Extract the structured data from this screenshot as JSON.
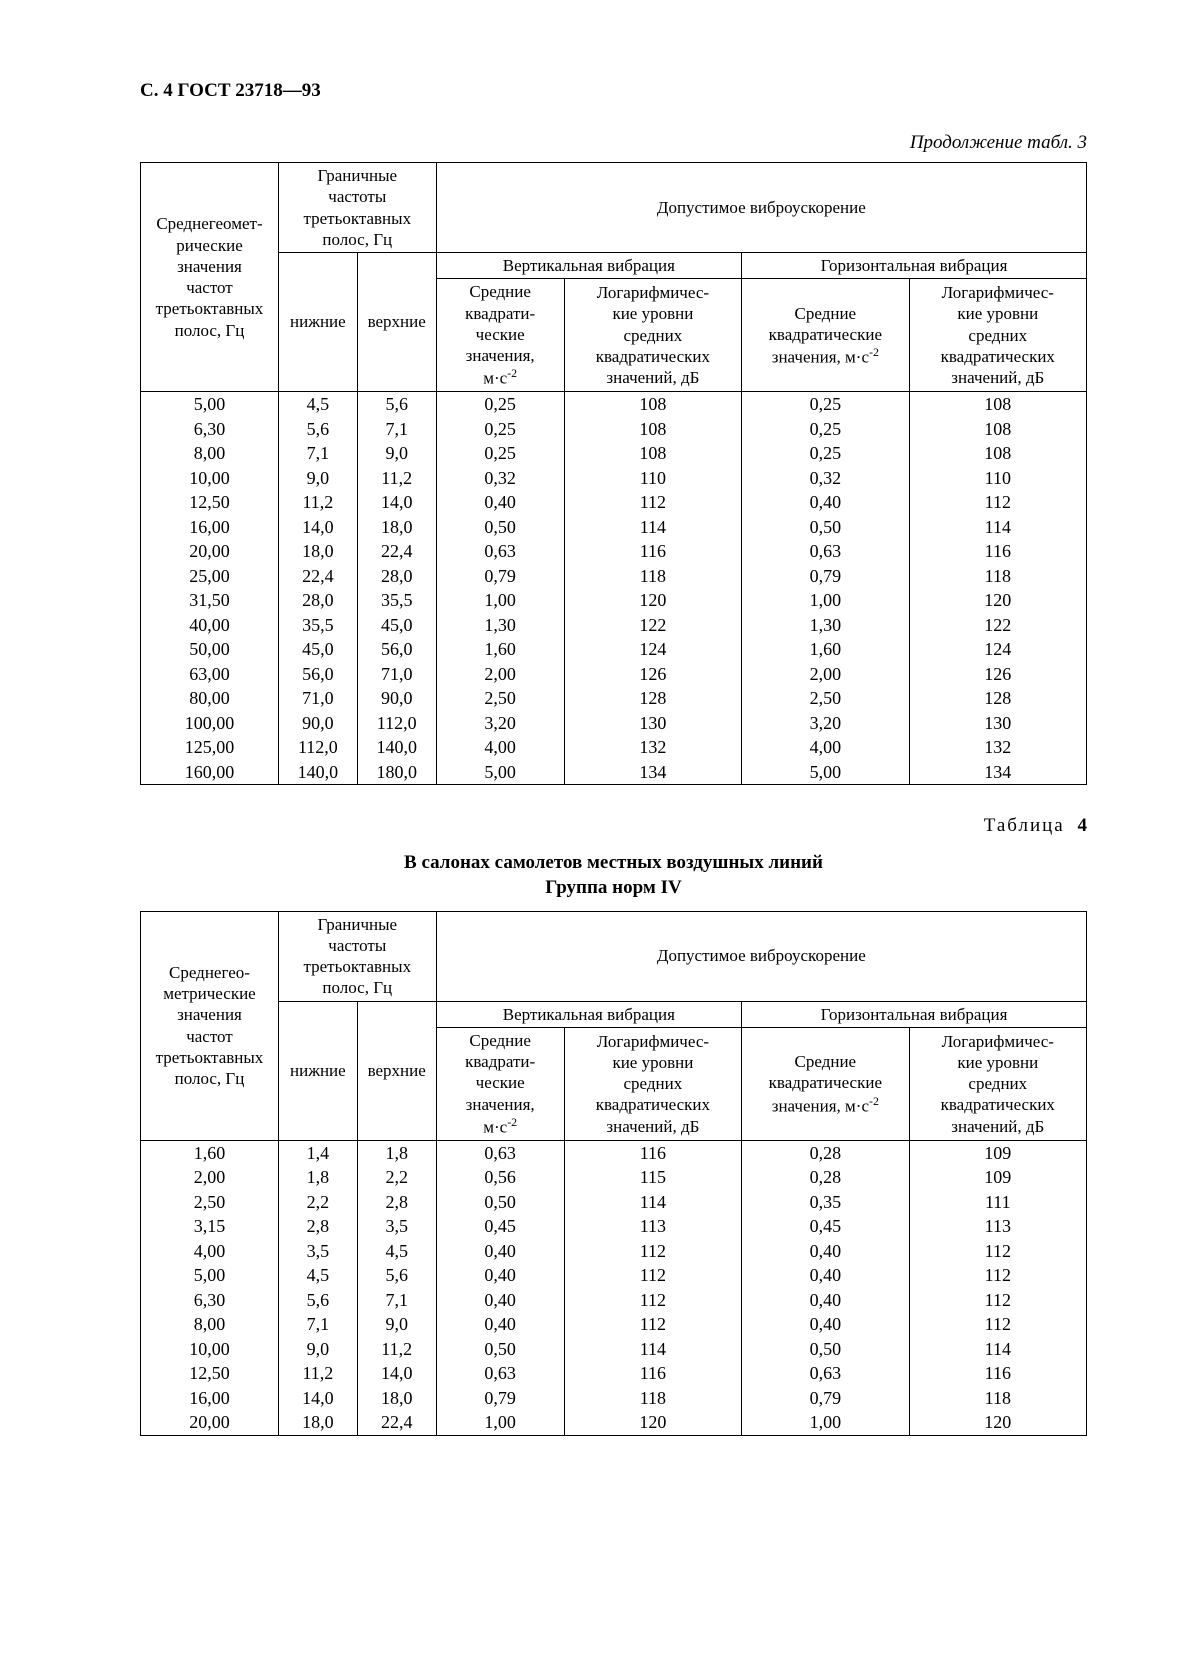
{
  "page_header": "С. 4 ГОСТ 23718—93",
  "continuation_text": "Продолжение табл. 3",
  "table_caption_label": "Таблица",
  "table4_number": "4",
  "table4_title_line1": "В салонах самолетов местных воздушных линий",
  "table4_title_line2": "Группа норм IV",
  "headers": {
    "col_freq": "Среднегеомет-\nрические значения частот третьоктавных полос, Гц",
    "col_freq_b": "Среднегео-\nметрические значения частот третьоктавных полос, Гц",
    "limit_freq": "Граничные частоты третьоктавных полос, Гц",
    "lower": "нижние",
    "upper": "верхние",
    "allowable": "Допустимое виброускорение",
    "vertical": "Вертикальная вибрация",
    "horizontal": "Горизонтальная вибрация",
    "rms": "Средние квадрати-\nческие значения, м·с⁻²",
    "rms_h": "Средние квадратические значения, м·с⁻²",
    "log": "Логарифмичес-\nкие уровни средних квадратических значений, дБ"
  },
  "table3_rows": [
    [
      "5,00",
      "4,5",
      "5,6",
      "0,25",
      "108",
      "0,25",
      "108"
    ],
    [
      "6,30",
      "5,6",
      "7,1",
      "0,25",
      "108",
      "0,25",
      "108"
    ],
    [
      "8,00",
      "7,1",
      "9,0",
      "0,25",
      "108",
      "0,25",
      "108"
    ],
    [
      "10,00",
      "9,0",
      "11,2",
      "0,32",
      "110",
      "0,32",
      "110"
    ],
    [
      "12,50",
      "11,2",
      "14,0",
      "0,40",
      "112",
      "0,40",
      "112"
    ],
    [
      "16,00",
      "14,0",
      "18,0",
      "0,50",
      "114",
      "0,50",
      "114"
    ],
    [
      "20,00",
      "18,0",
      "22,4",
      "0,63",
      "116",
      "0,63",
      "116"
    ],
    [
      "25,00",
      "22,4",
      "28,0",
      "0,79",
      "118",
      "0,79",
      "118"
    ],
    [
      "31,50",
      "28,0",
      "35,5",
      "1,00",
      "120",
      "1,00",
      "120"
    ],
    [
      "40,00",
      "35,5",
      "45,0",
      "1,30",
      "122",
      "1,30",
      "122"
    ],
    [
      "50,00",
      "45,0",
      "56,0",
      "1,60",
      "124",
      "1,60",
      "124"
    ],
    [
      "63,00",
      "56,0",
      "71,0",
      "2,00",
      "126",
      "2,00",
      "126"
    ],
    [
      "80,00",
      "71,0",
      "90,0",
      "2,50",
      "128",
      "2,50",
      "128"
    ],
    [
      "100,00",
      "90,0",
      "112,0",
      "3,20",
      "130",
      "3,20",
      "130"
    ],
    [
      "125,00",
      "112,0",
      "140,0",
      "4,00",
      "132",
      "4,00",
      "132"
    ],
    [
      "160,00",
      "140,0",
      "180,0",
      "5,00",
      "134",
      "5,00",
      "134"
    ]
  ],
  "table4_rows": [
    [
      "1,60",
      "1,4",
      "1,8",
      "0,63",
      "116",
      "0,28",
      "109"
    ],
    [
      "2,00",
      "1,8",
      "2,2",
      "0,56",
      "115",
      "0,28",
      "109"
    ],
    [
      "2,50",
      "2,2",
      "2,8",
      "0,50",
      "114",
      "0,35",
      "111"
    ],
    [
      "3,15",
      "2,8",
      "3,5",
      "0,45",
      "113",
      "0,45",
      "113"
    ],
    [
      "4,00",
      "3,5",
      "4,5",
      "0,40",
      "112",
      "0,40",
      "112"
    ],
    [
      "5,00",
      "4,5",
      "5,6",
      "0,40",
      "112",
      "0,40",
      "112"
    ],
    [
      "6,30",
      "5,6",
      "7,1",
      "0,40",
      "112",
      "0,40",
      "112"
    ],
    [
      "8,00",
      "7,1",
      "9,0",
      "0,40",
      "112",
      "0,40",
      "112"
    ],
    [
      "10,00",
      "9,0",
      "11,2",
      "0,50",
      "114",
      "0,50",
      "114"
    ],
    [
      "12,50",
      "11,2",
      "14,0",
      "0,63",
      "116",
      "0,63",
      "116"
    ],
    [
      "16,00",
      "14,0",
      "18,0",
      "0,79",
      "118",
      "0,79",
      "118"
    ],
    [
      "20,00",
      "18,0",
      "22,4",
      "1,00",
      "120",
      "1,00",
      "120"
    ]
  ]
}
